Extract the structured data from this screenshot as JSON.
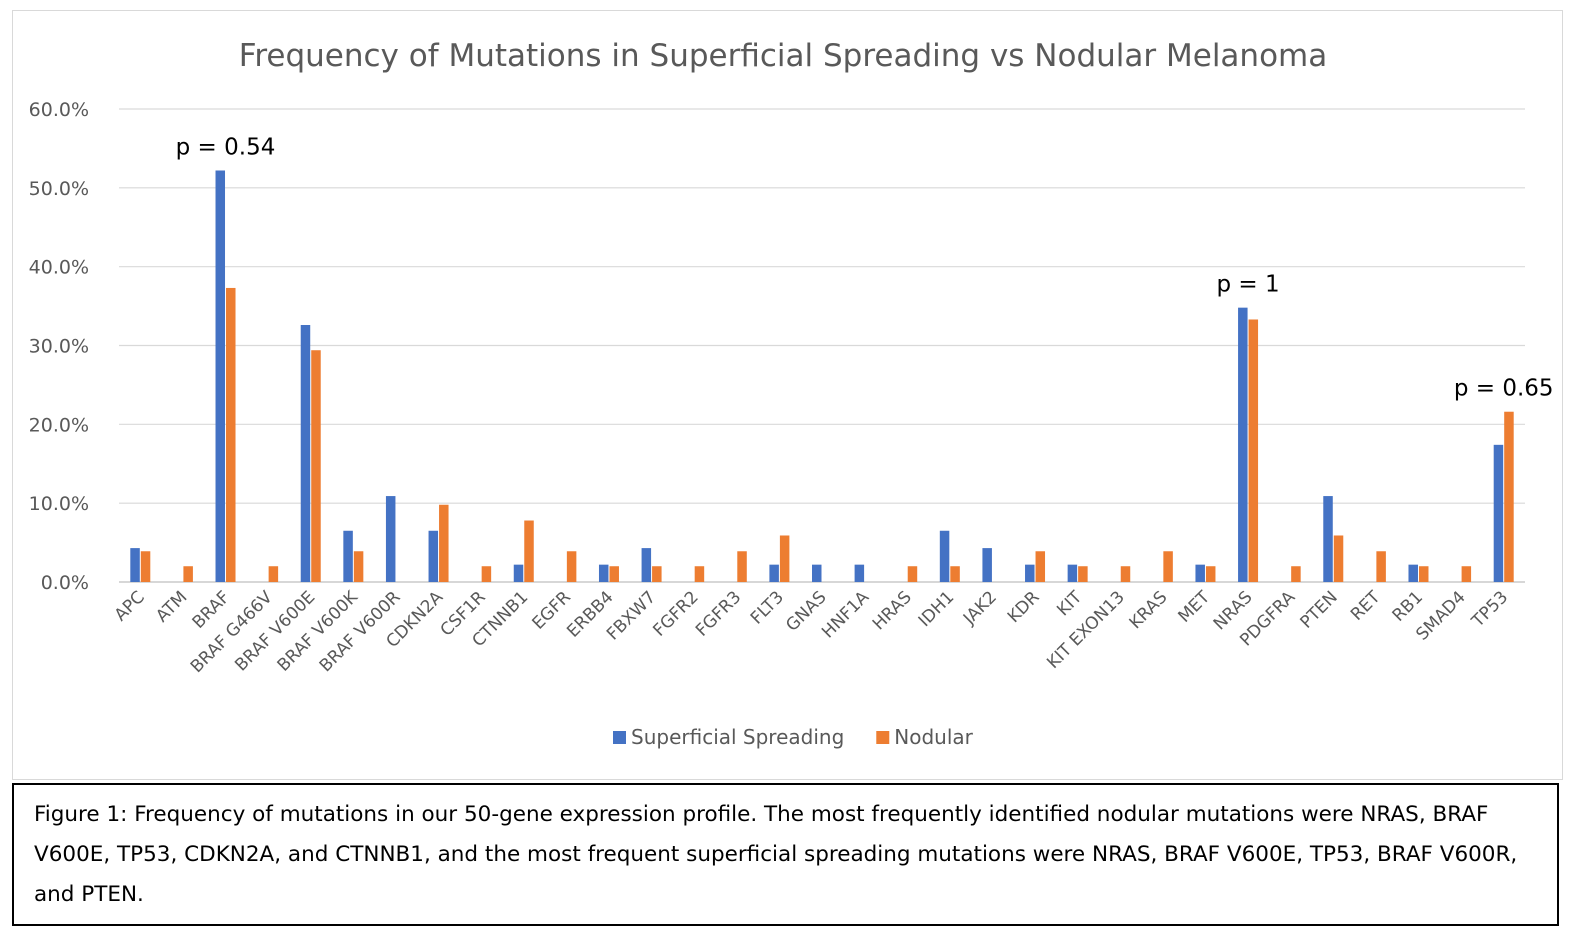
{
  "chart_data": {
    "type": "bar",
    "title": "Frequency of Mutations in Superficial Spreading vs Nodular Melanoma",
    "xlabel": "",
    "ylabel": "",
    "ylim": [
      0,
      0.6
    ],
    "yticks": [
      "0.0%",
      "10.0%",
      "20.0%",
      "30.0%",
      "40.0%",
      "50.0%",
      "60.0%"
    ],
    "grid": true,
    "legend_position": "bottom",
    "categories": [
      "APC",
      "ATM",
      "BRAF",
      "BRAF G466V",
      "BRAF V600E",
      "BRAF V600K",
      "BRAF V600R",
      "CDKN2A",
      "CSF1R",
      "CTNNB1",
      "EGFR",
      "ERBB4",
      "FBXW7",
      "FGFR2",
      "FGFR3",
      "FLT3",
      "GNAS",
      "HNF1A",
      "HRAS",
      "IDH1",
      "JAK2",
      "KDR",
      "KIT",
      "KIT EXON13",
      "KRAS",
      "MET",
      "NRAS",
      "PDGFRA",
      "PTEN",
      "RET",
      "RB1",
      "SMAD4",
      "TP53"
    ],
    "series": [
      {
        "name": "Superficial Spreading",
        "color": "#4472C4",
        "values": [
          0.043,
          0,
          0.522,
          0,
          0.326,
          0.065,
          0.109,
          0.065,
          0,
          0.022,
          0,
          0.022,
          0.043,
          0,
          0,
          0.022,
          0.022,
          0.022,
          0,
          0.065,
          0.043,
          0.022,
          0.022,
          0,
          0,
          0.022,
          0.348,
          0,
          0.109,
          0,
          0.022,
          0,
          0.174
        ]
      },
      {
        "name": "Nodular",
        "color": "#ED7D31",
        "values": [
          0.039,
          0.02,
          0.373,
          0.02,
          0.294,
          0.039,
          0,
          0.098,
          0.02,
          0.078,
          0.039,
          0.02,
          0.02,
          0.02,
          0.039,
          0.059,
          0,
          0,
          0.02,
          0.02,
          0,
          0.039,
          0.02,
          0.02,
          0.039,
          0.02,
          0.333,
          0.02,
          0.059,
          0.039,
          0.02,
          0.02,
          0.216
        ]
      }
    ],
    "annotations": [
      {
        "text": "p = 0.54",
        "category": "BRAF"
      },
      {
        "text": "p = 1",
        "category": "NRAS"
      },
      {
        "text": "p = 0.65",
        "category": "TP53"
      }
    ]
  },
  "caption": "Figure 1: Frequency of mutations in our 50-gene expression profile. The most frequently identified nodular mutations were NRAS, BRAF V600E, TP53, CDKN2A, and CTNNB1, and the most frequent superficial spreading mutations were NRAS, BRAF V600E, TP53, BRAF V600R, and PTEN."
}
